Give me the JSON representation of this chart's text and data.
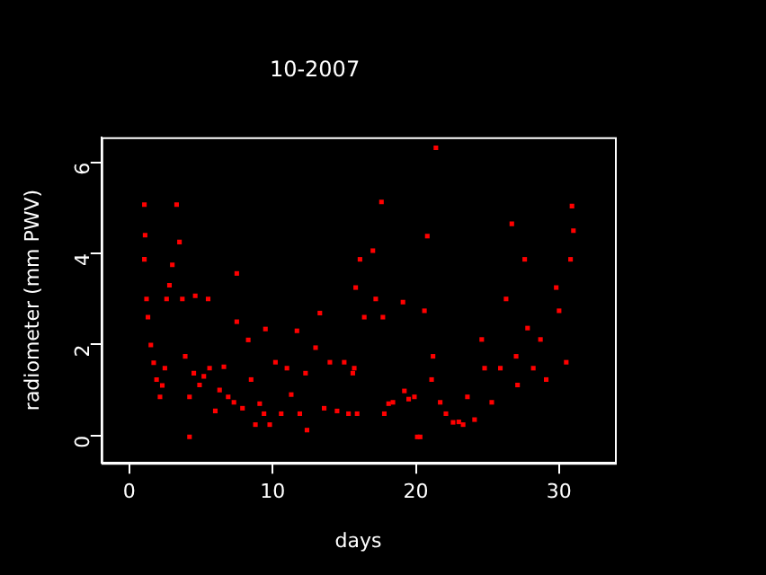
{
  "chart_data": {
    "type": "scatter",
    "title": "10-2007",
    "xlabel": "days",
    "ylabel": "radiometer (mm PWV)",
    "xlim": [
      -1.95,
      33.9
    ],
    "ylim": [
      -0.6,
      6.55
    ],
    "xticks": [
      0,
      10,
      20,
      30
    ],
    "yticks": [
      0,
      2,
      4,
      6
    ],
    "grid": false,
    "legend": false,
    "marker": "square",
    "series": [
      {
        "color": "#ff0000",
        "x": [
          1.05,
          1.05,
          1.1,
          1.2,
          1.3,
          1.5,
          1.7,
          1.9,
          2.14,
          2.3,
          2.48,
          2.6,
          2.8,
          3.0,
          3.3,
          3.5,
          3.7,
          3.9,
          4.2,
          4.2,
          4.5,
          4.6,
          4.9,
          5.2,
          5.5,
          5.6,
          6.0,
          6.3,
          6.6,
          6.9,
          7.3,
          7.5,
          7.5,
          7.9,
          8.3,
          8.5,
          8.8,
          9.1,
          9.4,
          9.5,
          9.8,
          10.2,
          10.6,
          11.0,
          11.3,
          11.7,
          11.9,
          12.3,
          12.4,
          13.0,
          13.3,
          13.6,
          14.0,
          14.5,
          15.0,
          15.3,
          15.6,
          15.7,
          15.8,
          15.9,
          16.1,
          16.4,
          17.0,
          17.2,
          17.6,
          17.7,
          17.8,
          18.1,
          18.4,
          19.1,
          19.2,
          19.5,
          19.9,
          20.1,
          20.3,
          20.6,
          20.8,
          21.1,
          21.2,
          21.4,
          21.7,
          22.1,
          22.6,
          23.0,
          23.3,
          23.6,
          24.1,
          24.6,
          24.8,
          25.3,
          25.9,
          26.3,
          26.7,
          27.0,
          27.1,
          27.6,
          27.8,
          28.2,
          28.7,
          29.1,
          29.8,
          30.0,
          30.5,
          30.8,
          30.9,
          31.0
        ],
        "values": [
          5.07,
          3.87,
          4.4,
          3.0,
          2.6,
          1.99,
          1.6,
          1.23,
          0.85,
          1.1,
          1.48,
          3.0,
          3.3,
          3.75,
          5.07,
          4.25,
          3.0,
          1.74,
          0.85,
          -0.03,
          1.37,
          3.07,
          1.11,
          1.3,
          3.0,
          1.48,
          0.54,
          1.0,
          1.51,
          0.85,
          0.73,
          3.56,
          2.5,
          0.6,
          2.1,
          1.23,
          0.24,
          0.7,
          0.48,
          2.34,
          0.24,
          1.61,
          0.48,
          1.48,
          0.9,
          2.3,
          0.48,
          1.37,
          0.12,
          1.93,
          2.69,
          0.6,
          1.61,
          0.54,
          1.61,
          0.48,
          1.37,
          1.48,
          3.25,
          0.48,
          3.87,
          2.6,
          4.06,
          3.0,
          5.13,
          2.6,
          0.48,
          0.7,
          0.73,
          2.93,
          0.98,
          0.8,
          0.85,
          -0.03,
          -0.03,
          2.74,
          4.38,
          1.23,
          1.74,
          6.32,
          0.73,
          0.48,
          0.29,
          0.3,
          0.24,
          0.85,
          0.35,
          2.11,
          1.48,
          0.73,
          1.48,
          3.0,
          4.65,
          1.74,
          1.11,
          3.87,
          2.36,
          1.48,
          2.11,
          1.23,
          3.25,
          2.74,
          1.61,
          3.87,
          5.04,
          4.5
        ]
      }
    ]
  }
}
